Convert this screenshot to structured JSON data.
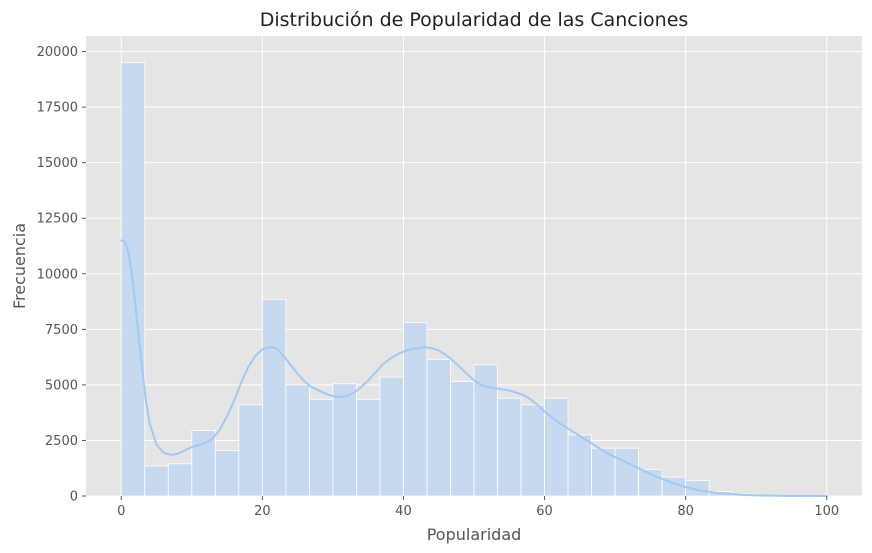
{
  "chart_data": {
    "type": "bar",
    "title": "Distribución de Popularidad de las Canciones",
    "xlabel": "Popularidad",
    "ylabel": "Frecuencia",
    "xlim": [
      -5,
      105
    ],
    "ylim": [
      0,
      20700
    ],
    "xticks": [
      0,
      20,
      40,
      60,
      80,
      100
    ],
    "yticks": [
      0,
      2500,
      5000,
      7500,
      10000,
      12500,
      15000,
      17500,
      20000
    ],
    "grid": true,
    "bin_width": 3.3333,
    "bin_start": 0,
    "values": [
      19500,
      1350,
      1450,
      2950,
      2050,
      4100,
      8850,
      5000,
      4350,
      5050,
      4350,
      5350,
      7800,
      6150,
      5150,
      5900,
      4400,
      4100,
      4400,
      2750,
      2150,
      2150,
      1200,
      850,
      700,
      200,
      80,
      30,
      10,
      5
    ],
    "kde": {
      "x": [
        0,
        0.5,
        1,
        1.5,
        2,
        2.5,
        3,
        3.5,
        4,
        5,
        6,
        7,
        8,
        9,
        10,
        11,
        12,
        13,
        14,
        15,
        16,
        17,
        18,
        19,
        20,
        21,
        22,
        23,
        24,
        25,
        26,
        27,
        28,
        29,
        30,
        31,
        32,
        33,
        34,
        35,
        36,
        37,
        38,
        39,
        40,
        41,
        42,
        43,
        44,
        45,
        46,
        47,
        48,
        49,
        50,
        51,
        52,
        53,
        54,
        55,
        56,
        57,
        58,
        59,
        60,
        61,
        62,
        63,
        64,
        65,
        66,
        67,
        68,
        69,
        70,
        72,
        74,
        76,
        78,
        80,
        82,
        84,
        86,
        88,
        90,
        92,
        94,
        96,
        98,
        100
      ],
      "y": [
        11500,
        11450,
        11000,
        10000,
        8600,
        7100,
        5600,
        4300,
        3300,
        2300,
        1950,
        1850,
        1900,
        2050,
        2200,
        2300,
        2400,
        2600,
        3000,
        3600,
        4300,
        5100,
        5800,
        6300,
        6600,
        6700,
        6650,
        6300,
        5900,
        5500,
        5150,
        4900,
        4750,
        4600,
        4500,
        4450,
        4500,
        4650,
        4900,
        5200,
        5550,
        5900,
        6150,
        6350,
        6500,
        6600,
        6650,
        6700,
        6650,
        6550,
        6350,
        6100,
        5800,
        5500,
        5200,
        5000,
        4900,
        4850,
        4800,
        4750,
        4650,
        4550,
        4350,
        4100,
        3800,
        3550,
        3300,
        3100,
        2900,
        2700,
        2500,
        2300,
        2100,
        1900,
        1750,
        1450,
        1150,
        850,
        600,
        400,
        250,
        150,
        90,
        50,
        30,
        15,
        8,
        5,
        3,
        2
      ]
    },
    "colors": {
      "bar_fill": "#c6d9ef",
      "bar_edge": "#ffffff",
      "kde_line": "#a1c9f4",
      "plot_bg": "#e5e5e5",
      "grid": "#ffffff"
    }
  }
}
